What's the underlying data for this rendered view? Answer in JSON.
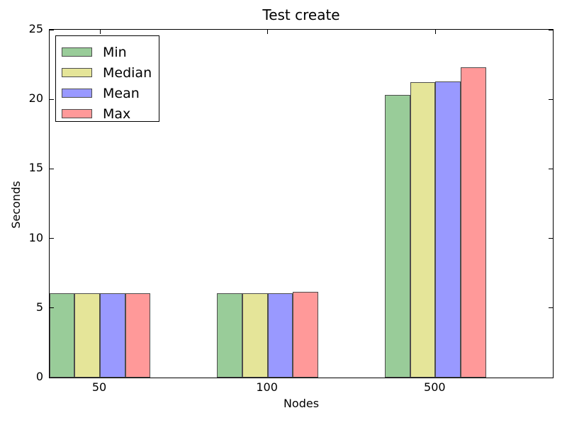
{
  "figure_title": "Test create",
  "chart_data": {
    "type": "bar",
    "title": "Test create",
    "xlabel": "Nodes",
    "ylabel": "Seconds",
    "categories": [
      "50",
      "100",
      "500"
    ],
    "series": [
      {
        "name": "Min",
        "color": "#99cc99",
        "values": [
          6.05,
          6.05,
          20.3
        ]
      },
      {
        "name": "Median",
        "color": "#e5e599",
        "values": [
          6.05,
          6.05,
          21.25
        ]
      },
      {
        "name": "Mean",
        "color": "#9999ff",
        "values": [
          6.05,
          6.05,
          21.3
        ]
      },
      {
        "name": "Max",
        "color": "#ff9999",
        "values": [
          6.05,
          6.15,
          22.3
        ]
      }
    ],
    "ylim": [
      0,
      25
    ],
    "yticks": [
      0,
      5,
      10,
      15,
      20,
      25
    ],
    "bar_edge_color": "#4d4d4d",
    "legend_position": "upper left",
    "grid": false
  }
}
